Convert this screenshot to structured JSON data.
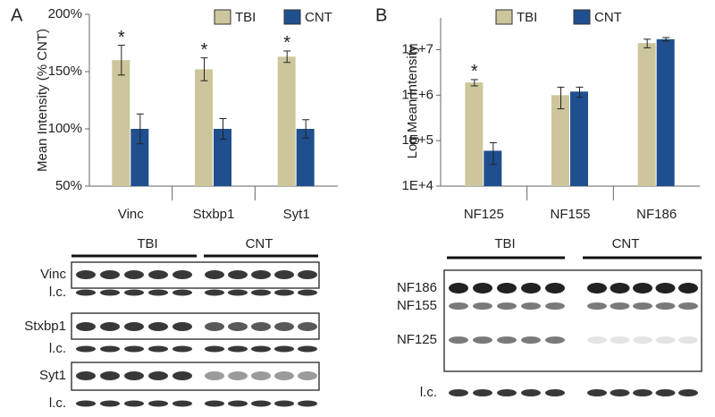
{
  "chart_data": [
    {
      "type": "bar",
      "panel_label": "A",
      "y_label": "Mean Intensity (% CNT)",
      "categories": [
        "Vinc",
        "Stxbp1",
        "Syt1"
      ],
      "series": [
        {
          "name": "TBI",
          "color": "#cdc69c",
          "values": [
            160,
            152,
            163
          ],
          "errors": [
            13,
            10,
            5
          ],
          "significance": [
            "*",
            "*",
            "*"
          ]
        },
        {
          "name": "CNT",
          "color": "#1f4f8f",
          "values": [
            100,
            100,
            100
          ],
          "errors": [
            13,
            9,
            8
          ]
        }
      ],
      "ylim": [
        50,
        200
      ],
      "yticks": [
        {
          "value": 50,
          "label": "50%"
        },
        {
          "value": 100,
          "label": "100%"
        },
        {
          "value": 150,
          "label": "150%"
        },
        {
          "value": 200,
          "label": "200%"
        }
      ],
      "legend": "top"
    },
    {
      "type": "bar",
      "panel_label": "B",
      "y_label": "Log Mean Intensity",
      "log_scale": true,
      "categories": [
        "NF125",
        "NF155",
        "NF186"
      ],
      "series": [
        {
          "name": "TBI",
          "color": "#cdc69c",
          "values": [
            1900000,
            1000000,
            14000000
          ],
          "errors": [
            300000,
            500000,
            3000000
          ],
          "significance": [
            "*",
            null,
            null
          ]
        },
        {
          "name": "CNT",
          "color": "#1f4f8f",
          "values": [
            60000,
            1200000,
            17000000
          ],
          "errors": [
            30000,
            300000,
            1500000
          ]
        }
      ],
      "ylim": [
        10000,
        50000000
      ],
      "yticks": [
        {
          "value": 10000,
          "label": "1E+4"
        },
        {
          "value": 100000,
          "label": "1E+5"
        },
        {
          "value": 1000000,
          "label": "1E+6"
        },
        {
          "value": 10000000,
          "label": "1E+7"
        }
      ],
      "legend": "top"
    }
  ],
  "blot_a": {
    "groups": [
      "TBI",
      "CNT"
    ],
    "rows": [
      "Vinc",
      "l.c.",
      "Stxbp1",
      "l.c.",
      "Syt1",
      "l.c."
    ]
  },
  "blot_b": {
    "groups": [
      "TBI",
      "CNT"
    ],
    "bands": [
      "NF186",
      "NF155",
      "NF125"
    ],
    "loading": "l.c."
  }
}
